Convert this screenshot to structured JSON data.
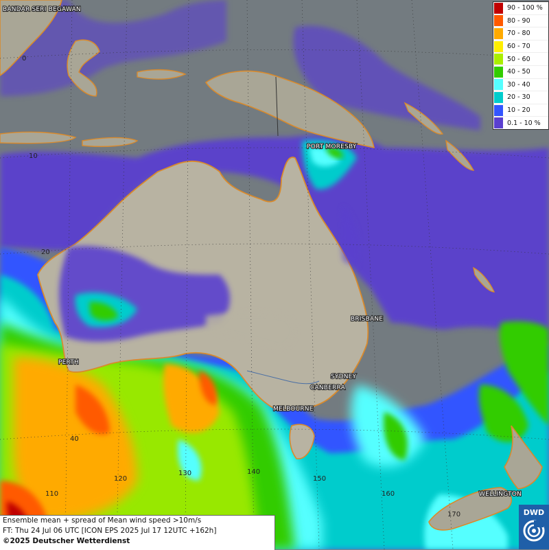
{
  "map": {
    "cities": [
      {
        "name": "BANDAR SERI BEGAWAN"
      },
      {
        "name": "PORT MORESBY"
      },
      {
        "name": "BRISBANE"
      },
      {
        "name": "PERTH"
      },
      {
        "name": "SYDNEY"
      },
      {
        "name": "CANBERRA"
      },
      {
        "name": "MELBOURNE"
      },
      {
        "name": "WELLINGTON"
      }
    ],
    "latitude_labels": [
      "0",
      "10",
      "20",
      "40"
    ],
    "longitude_labels": [
      "110",
      "120",
      "130",
      "140",
      "150",
      "160",
      "170"
    ]
  },
  "legend": {
    "items": [
      {
        "label": "90 - 100 %",
        "color": "#c00000"
      },
      {
        "label": "80 - 90",
        "color": "#ff5a00"
      },
      {
        "label": "70 - 80",
        "color": "#ffaa00"
      },
      {
        "label": "60 - 70",
        "color": "#ffee00"
      },
      {
        "label": "50 - 60",
        "color": "#aaee00"
      },
      {
        "label": "40 - 50",
        "color": "#33cc00"
      },
      {
        "label": "30 - 40",
        "color": "#55ffff"
      },
      {
        "label": "20 - 30",
        "color": "#00cccc"
      },
      {
        "label": "10 - 20",
        "color": "#3355ff"
      },
      {
        "label": "0.1 - 10 %",
        "color": "#5a3fcf"
      }
    ]
  },
  "info": {
    "line1": "Ensemble mean + spread of Mean wind speed >10m/s",
    "line2": "FT: Thu 24 Jul 06 UTC [ICON EPS 2025 Jul 17 12UTC +162h]",
    "line3": "©2025 Deutscher Wetterdienst"
  },
  "logo": {
    "text": "DWD"
  }
}
